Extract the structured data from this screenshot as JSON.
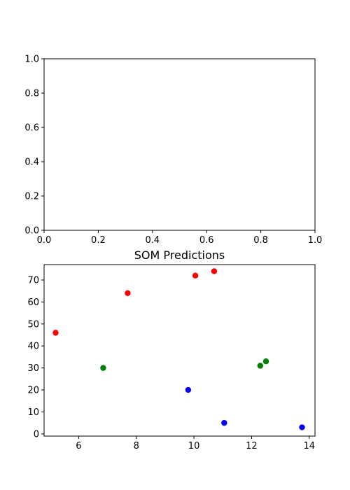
{
  "chart_data": [
    {
      "type": "scatter",
      "title": "",
      "xlim": [
        0.0,
        1.0
      ],
      "ylim": [
        0.0,
        1.0
      ],
      "xticks": [
        "0.0",
        "0.2",
        "0.4",
        "0.6",
        "0.8",
        "1.0"
      ],
      "yticks": [
        "0.0",
        "0.2",
        "0.4",
        "0.6",
        "0.8",
        "1.0"
      ],
      "series": []
    },
    {
      "type": "scatter",
      "title": "SOM Predictions",
      "xlim": [
        4.8,
        14.2
      ],
      "ylim": [
        -1,
        77
      ],
      "xticks": [
        "6",
        "8",
        "10",
        "12",
        "14"
      ],
      "yticks": [
        "0",
        "10",
        "20",
        "30",
        "40",
        "50",
        "60",
        "70"
      ],
      "series": [
        {
          "color": "#ff0000",
          "points": [
            [
              5.2,
              46
            ],
            [
              7.7,
              64
            ],
            [
              10.05,
              72
            ],
            [
              10.7,
              74
            ]
          ]
        },
        {
          "color": "#008000",
          "points": [
            [
              6.85,
              30
            ],
            [
              12.3,
              31
            ],
            [
              12.5,
              33
            ]
          ]
        },
        {
          "color": "#0000ff",
          "points": [
            [
              9.8,
              20
            ],
            [
              11.05,
              5
            ],
            [
              13.75,
              3
            ]
          ]
        }
      ]
    }
  ]
}
